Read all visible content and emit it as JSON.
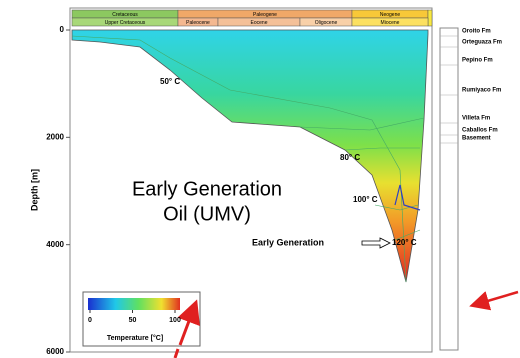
{
  "chart_data": {
    "type": "burial-history",
    "periods": [
      "Cretaceous",
      "Paleogene",
      "Neogene"
    ],
    "epochs": [
      "Upper Cretaceous",
      "Paleocene",
      "Eocene",
      "Oligocene",
      "Miocene"
    ],
    "ylabel": "Depth [m]",
    "ylim": [
      0,
      6000
    ],
    "yticks": [
      0,
      2000,
      4000,
      6000
    ],
    "isotherms": [
      "50° C",
      "80° C",
      "100° C",
      "120° C"
    ],
    "annotation": "Early Generation",
    "overlay_text": [
      "Early Generation",
      "Oil (UMV)"
    ],
    "formations": [
      "Oroito Fm",
      "Orteguaza Fm",
      "Pepino Fm",
      "Rumiyaco Fm",
      "Villeta  Fm",
      "Caballos Fm",
      "Basement"
    ],
    "colorbar": {
      "label": "Temperature [°C]",
      "ticks": [
        0,
        50,
        100
      ]
    }
  }
}
